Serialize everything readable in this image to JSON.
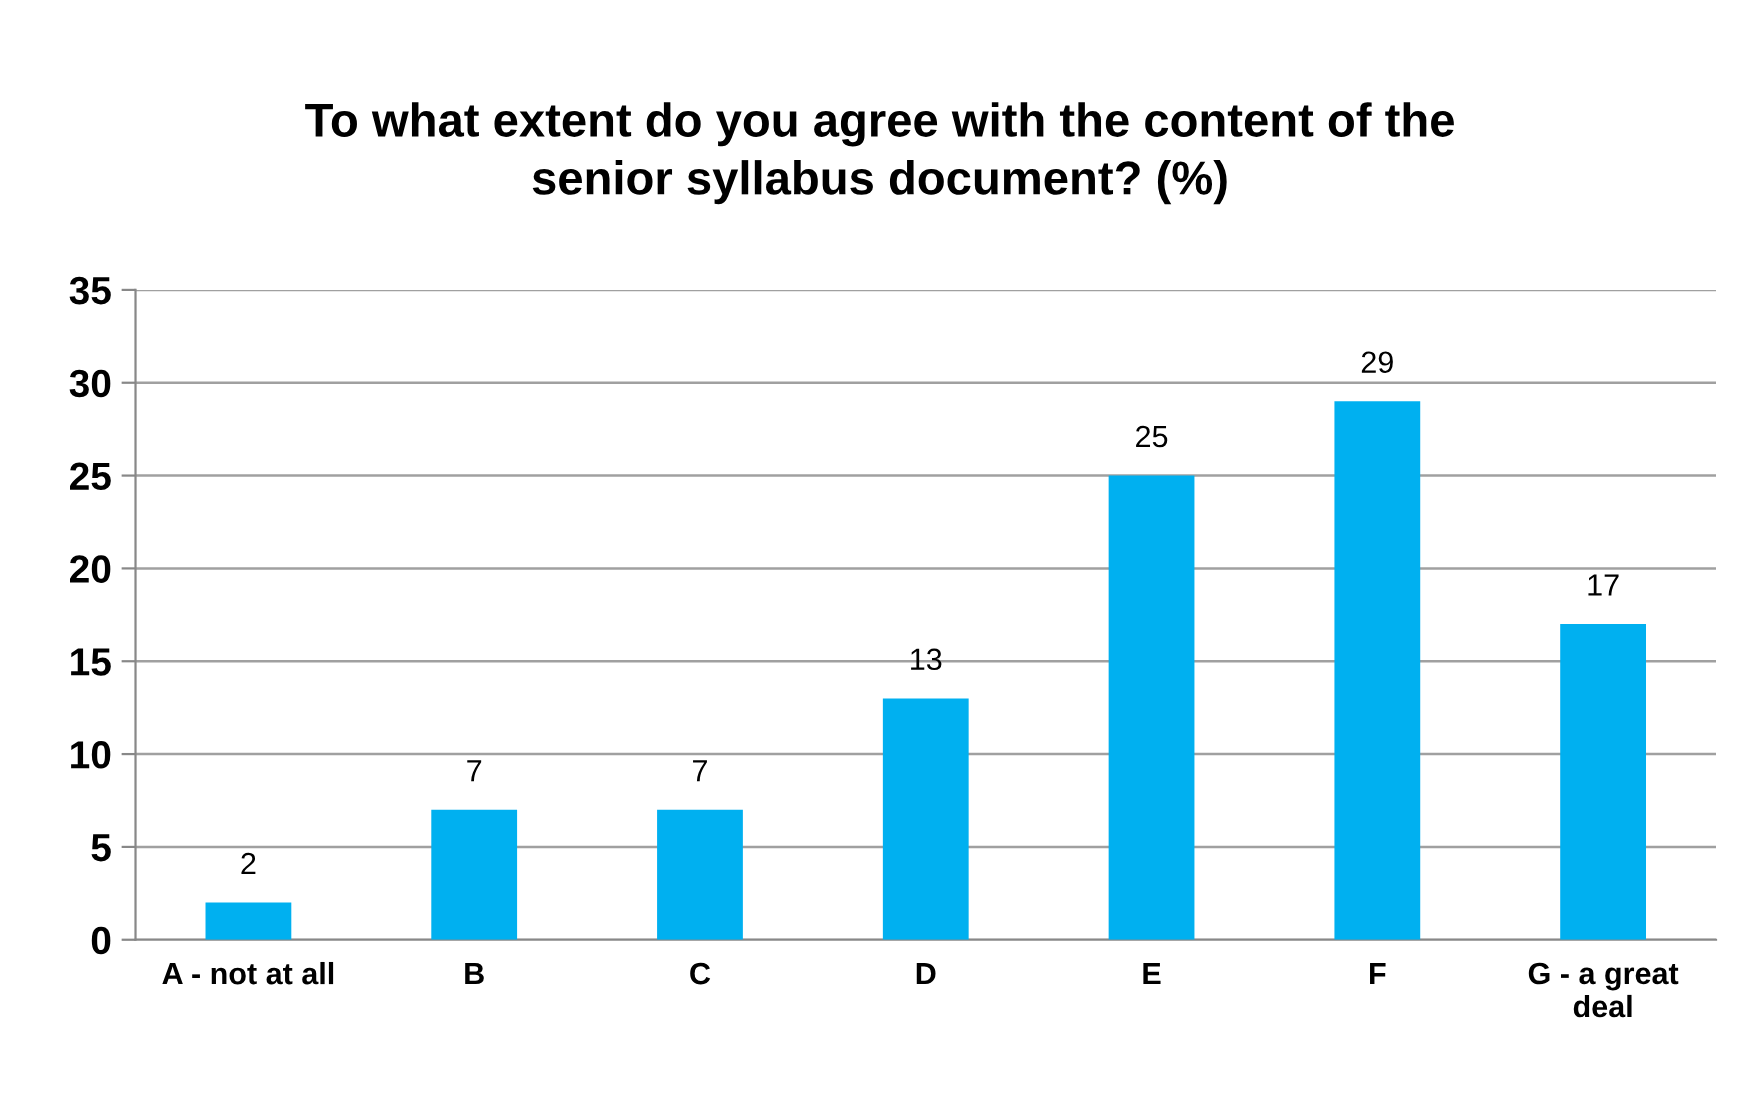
{
  "chart_data": {
    "type": "bar",
    "title": "To what extent do you agree with the content of the\nsenior syllabus document? (%)",
    "categories": [
      "A - not at all",
      "B",
      "C",
      "D",
      "E",
      "F",
      "G - a great\ndeal"
    ],
    "values": [
      2,
      7,
      7,
      13,
      25,
      29,
      17
    ],
    "color": "#00b0f0",
    "ylim": [
      0,
      35
    ],
    "yticks": [
      0,
      5,
      10,
      15,
      20,
      25,
      30,
      35
    ],
    "grid": "y",
    "data_labels": true,
    "legend": false
  }
}
